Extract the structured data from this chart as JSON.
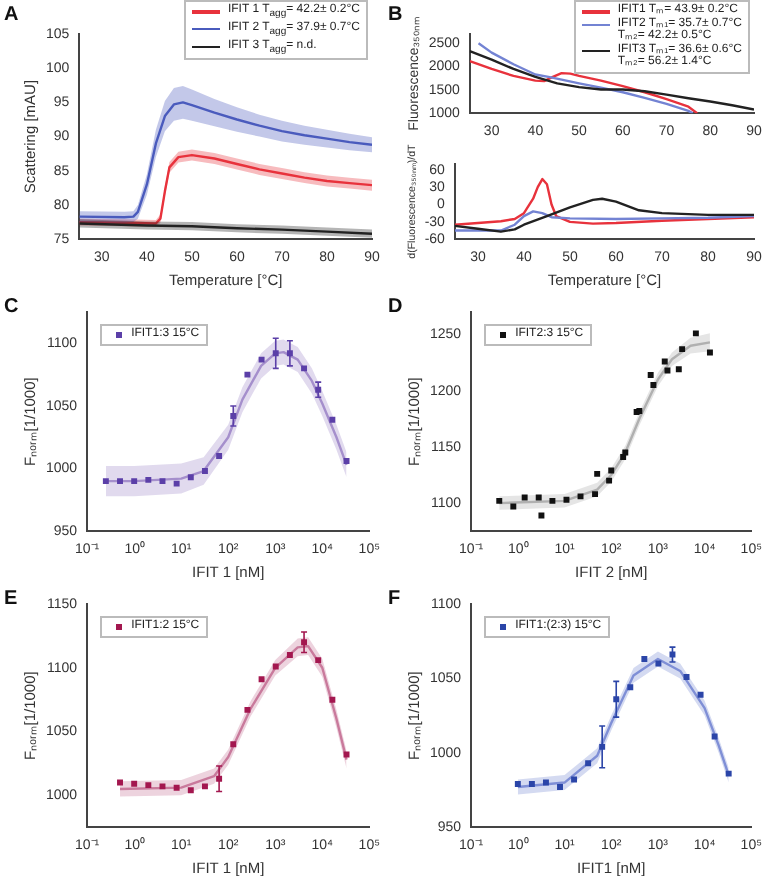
{
  "chart_data": [
    {
      "type": "line",
      "annotations": [
        "A"
      ],
      "xlabel": "Temperature [°C]",
      "ylabel": "Scattering [mAU]",
      "xlim": [
        25,
        90
      ],
      "xticks": [
        30,
        40,
        50,
        60,
        70,
        80,
        90
      ],
      "ylim": [
        75,
        105
      ],
      "yticks": [
        75,
        80,
        85,
        90,
        95,
        100,
        105
      ],
      "grid": false,
      "legend": "top right",
      "series": [
        {
          "name": "IFIT 1  T$_{agg}$= 42.2± 0.2°C",
          "color": "#e8323c",
          "x": [
            25,
            35,
            42,
            43,
            44,
            45,
            47,
            50,
            55,
            60,
            65,
            70,
            75,
            80,
            85,
            90
          ],
          "values": [
            77.5,
            77.4,
            77.3,
            78,
            82,
            85.5,
            87,
            87.3,
            86.8,
            86,
            85.2,
            84.6,
            84,
            83.5,
            83.2,
            82.9
          ],
          "lower": [
            77,
            76.9,
            76.8,
            77.4,
            81.3,
            84.7,
            86.2,
            86.5,
            86,
            85.2,
            84.4,
            83.8,
            83.2,
            82.7,
            82.4,
            82.1
          ],
          "upper": [
            78,
            77.9,
            77.8,
            78.6,
            82.7,
            86.3,
            87.8,
            88.1,
            87.6,
            86.8,
            86,
            85.4,
            84.8,
            84.3,
            84,
            83.7
          ]
        },
        {
          "name": "IFIT 2  T$_{agg}$= 37.9± 0.7°C",
          "color": "#4a5bbd",
          "x": [
            25,
            35,
            37,
            38,
            40,
            42,
            44,
            46,
            48,
            50,
            55,
            60,
            65,
            70,
            75,
            80,
            85,
            90
          ],
          "values": [
            78.3,
            78.2,
            78.3,
            79,
            83,
            89,
            93,
            94.7,
            95,
            94.6,
            93.5,
            92.5,
            91.6,
            90.8,
            90.2,
            89.7,
            89.2,
            88.8
          ],
          "lower": [
            77.5,
            77.4,
            77.5,
            78,
            81.5,
            87,
            90.8,
            92.3,
            92.6,
            92.3,
            91.5,
            90.7,
            90,
            89.3,
            88.8,
            88.4,
            88,
            87.7
          ],
          "upper": [
            79.1,
            79,
            79.1,
            80,
            84.5,
            91,
            95.2,
            97.1,
            97.4,
            96.9,
            95.5,
            94.3,
            93.2,
            92.3,
            91.6,
            91,
            90.4,
            89.9
          ]
        },
        {
          "name": "IFIT 3  T$_{agg}$= n.d.",
          "color": "#222222",
          "x": [
            25,
            40,
            50,
            60,
            70,
            80,
            90
          ],
          "values": [
            77.3,
            77,
            76.9,
            76.6,
            76.4,
            76.1,
            75.8
          ],
          "lower": [
            76.7,
            76.4,
            76.3,
            76,
            75.8,
            75.5,
            75.2
          ],
          "upper": [
            77.9,
            77.6,
            77.5,
            77.2,
            77,
            76.7,
            76.4
          ]
        }
      ]
    },
    {
      "type": "line",
      "annotations": [
        "B"
      ],
      "ylabel": "Fluorescence₃₅₀ₙₘ",
      "xlim": [
        25,
        90
      ],
      "xticks": [
        30,
        40,
        50,
        60,
        70,
        80,
        90
      ],
      "ylim": [
        1000,
        2700
      ],
      "yticks": [
        1000,
        1500,
        2000,
        2500
      ],
      "grid": false,
      "legend": "top right",
      "series": [
        {
          "name": "IFIT1  Tₘ= 43.9± 0.2°C",
          "color": "#e8323c",
          "x": [
            25,
            30,
            35,
            40,
            42,
            44,
            46,
            48,
            50,
            55,
            60,
            65,
            70,
            75,
            77
          ],
          "values": [
            2120,
            1950,
            1800,
            1700,
            1690,
            1780,
            1860,
            1850,
            1800,
            1700,
            1580,
            1450,
            1300,
            1140,
            1000
          ]
        },
        {
          "name": "IFIT2  Tₘ₁= 35.7± 0.7°C\nTₘ₂= 42.2± 0.5°C",
          "color": "#7383d3",
          "x": [
            27,
            30,
            35,
            40,
            43,
            46,
            50,
            55,
            60,
            65,
            70,
            75,
            76
          ],
          "values": [
            2500,
            2300,
            2050,
            1830,
            1780,
            1720,
            1640,
            1550,
            1450,
            1330,
            1200,
            1050,
            1000
          ]
        },
        {
          "name": "IFIT3  Tₘ₁= 36.6± 0.6°C\nTₘ₂= 56.2± 1.4°C",
          "color": "#222222",
          "x": [
            25,
            30,
            35,
            40,
            45,
            50,
            55,
            60,
            65,
            70,
            75,
            80,
            85,
            90
          ],
          "values": [
            2330,
            2150,
            1950,
            1780,
            1640,
            1560,
            1510,
            1510,
            1470,
            1400,
            1320,
            1250,
            1170,
            1080
          ]
        }
      ]
    },
    {
      "type": "line",
      "xlabel": "Temperature [°C]",
      "ylabel": "d(Fluorescence₃₅₀ₙₘ)/dT",
      "xlim": [
        25,
        90
      ],
      "xticks": [
        30,
        40,
        50,
        60,
        70,
        80,
        90
      ],
      "ylim": [
        -60,
        70
      ],
      "yticks": [
        -60,
        -30,
        0,
        30,
        60
      ],
      "grid": false,
      "series": [
        {
          "color": "#e8323c",
          "x": [
            25,
            30,
            35,
            38,
            40,
            42,
            43,
            44,
            45,
            46,
            47,
            50,
            55,
            60,
            70,
            80,
            90
          ],
          "values": [
            -35,
            -32,
            -29,
            -25,
            -15,
            10,
            30,
            44,
            35,
            0,
            -20,
            -30,
            -33,
            -32,
            -28,
            -25,
            -22
          ]
        },
        {
          "color": "#7383d3",
          "x": [
            25,
            30,
            35,
            38,
            40,
            42,
            44,
            46,
            50,
            60,
            70,
            80,
            90
          ],
          "values": [
            -45,
            -45,
            -45,
            -35,
            -20,
            -12,
            -15,
            -22,
            -24,
            -25,
            -24,
            -23,
            -20
          ]
        },
        {
          "color": "#222222",
          "x": [
            25,
            30,
            35,
            38,
            40,
            45,
            50,
            55,
            57,
            60,
            65,
            70,
            80,
            90
          ],
          "values": [
            -37,
            -42,
            -47,
            -43,
            -35,
            -20,
            -5,
            8,
            10,
            5,
            -10,
            -15,
            -18,
            -18
          ]
        }
      ]
    },
    {
      "type": "scatter",
      "annotations": [
        "C"
      ],
      "xlabel": "IFIT 1 [nM]",
      "ylabel": "Fₙₒᵣₘ[1/1000]",
      "log": "x",
      "xlim": [
        0.1,
        100000
      ],
      "xticks": [
        {
          "value": 0.1,
          "label": "10⁻¹"
        },
        {
          "value": 1,
          "label": "10⁰"
        },
        {
          "value": 10,
          "label": "10¹"
        },
        {
          "value": 100,
          "label": "10²"
        },
        {
          "value": 1000,
          "label": "10³"
        },
        {
          "value": 10000,
          "label": "10⁴"
        },
        {
          "value": 100000,
          "label": "10⁵"
        }
      ],
      "ylim": [
        950,
        1125
      ],
      "yticks": [
        950,
        1000,
        1050,
        1100
      ],
      "grid": false,
      "legend": "top left",
      "series": [
        {
          "type": "line",
          "marker": "none",
          "color": "#a58fcc",
          "x": [
            0.25,
            1,
            10,
            30,
            100,
            200,
            500,
            1000,
            1500,
            3000,
            6000,
            10000,
            20000,
            32768
          ],
          "values": [
            990,
            990,
            992,
            998,
            1025,
            1055,
            1082,
            1092,
            1093,
            1087,
            1070,
            1052,
            1025,
            1003
          ],
          "lower": [
            978,
            978,
            980,
            987,
            1015,
            1045,
            1072,
            1082,
            1083,
            1077,
            1060,
            1042,
            1015,
            993
          ],
          "upper": [
            1002,
            1002,
            1004,
            1009,
            1035,
            1065,
            1092,
            1102,
            1103,
            1097,
            1080,
            1062,
            1035,
            1013
          ]
        },
        {
          "type": "scatter",
          "marker": "square",
          "name": "IFIT1:3 15°C",
          "color": "#5b3fa8",
          "x": [
            0.25,
            0.5,
            1,
            2,
            4,
            8,
            16,
            32,
            64,
            128,
            256,
            512,
            1024,
            2048,
            4096,
            8192,
            16384,
            32768
          ],
          "values": [
            990,
            990,
            990,
            991,
            990,
            988,
            993,
            998,
            1010,
            1042,
            1075,
            1087,
            1092,
            1092,
            1080,
            1063,
            1039,
            1006
          ],
          "errors": [
            null,
            null,
            null,
            null,
            null,
            null,
            null,
            null,
            null,
            8,
            null,
            null,
            12,
            10,
            null,
            6,
            null,
            null
          ]
        }
      ]
    },
    {
      "type": "scatter",
      "annotations": [
        "D"
      ],
      "xlabel": "IFIT 2 [nM]",
      "ylabel": "Fₙₒᵣₘ[1/1000]",
      "log": "x",
      "xlim": [
        0.1,
        100000
      ],
      "xticks": [
        {
          "value": 0.1,
          "label": "10⁻¹"
        },
        {
          "value": 1,
          "label": "10⁰"
        },
        {
          "value": 10,
          "label": "10¹"
        },
        {
          "value": 100,
          "label": "10²"
        },
        {
          "value": 1000,
          "label": "10³"
        },
        {
          "value": 10000,
          "label": "10⁴"
        },
        {
          "value": 100000,
          "label": "10⁵"
        }
      ],
      "ylim": [
        1075,
        1270
      ],
      "yticks": [
        1100,
        1150,
        1200,
        1250
      ],
      "grid": false,
      "legend": "top left",
      "series": [
        {
          "type": "line",
          "marker": "none",
          "color": "#b0b0b0",
          "x": [
            0.4,
            10,
            50,
            100,
            200,
            400,
            1000,
            2000,
            5000,
            13000
          ],
          "values": [
            1100,
            1102,
            1112,
            1125,
            1145,
            1175,
            1210,
            1228,
            1240,
            1243
          ],
          "lower": [
            1094,
            1096,
            1106,
            1119,
            1139,
            1169,
            1204,
            1222,
            1233,
            1235
          ],
          "upper": [
            1106,
            1108,
            1118,
            1131,
            1151,
            1181,
            1216,
            1234,
            1247,
            1251
          ]
        },
        {
          "type": "scatter",
          "marker": "square",
          "name": "IFIT2:3 15°C",
          "color": "#111111",
          "x": [
            0.4,
            0.8,
            1.4,
            2.8,
            3.2,
            5.5,
            11,
            22,
            45,
            50,
            90,
            100,
            180,
            200,
            350,
            400,
            700,
            800,
            1400,
            1600,
            2800,
            3300,
            6500,
            13000
          ],
          "values": [
            1102,
            1097,
            1105,
            1105,
            1089,
            1102,
            1103,
            1106,
            1108,
            1126,
            1120,
            1129,
            1141,
            1145,
            1181,
            1182,
            1214,
            1205,
            1226,
            1218,
            1219,
            1237,
            1251,
            1234
          ]
        }
      ]
    },
    {
      "type": "scatter",
      "annotations": [
        "E"
      ],
      "xlabel": "IFIT 1 [nM]",
      "ylabel": "Fₙₒᵣₘ[1/1000]",
      "log": "x",
      "xlim": [
        0.1,
        100000
      ],
      "xticks": [
        {
          "value": 0.1,
          "label": "10⁻¹"
        },
        {
          "value": 1,
          "label": "10⁰"
        },
        {
          "value": 10,
          "label": "10¹"
        },
        {
          "value": 100,
          "label": "10²"
        },
        {
          "value": 1000,
          "label": "10³"
        },
        {
          "value": 10000,
          "label": "10⁴"
        },
        {
          "value": 100000,
          "label": "10⁵"
        }
      ],
      "ylim": [
        975,
        1150
      ],
      "yticks": [
        1000,
        1050,
        1100,
        1150
      ],
      "grid": false,
      "legend": "top left",
      "series": [
        {
          "type": "line",
          "marker": "none",
          "color": "#c97a9c",
          "x": [
            0.5,
            10,
            50,
            100,
            300,
            1000,
            3000,
            5000,
            10000,
            20000,
            32768
          ],
          "values": [
            1005,
            1006,
            1015,
            1030,
            1068,
            1100,
            1116,
            1117,
            1100,
            1060,
            1028
          ],
          "lower": [
            999,
            1000,
            1009,
            1024,
            1062,
            1094,
            1109,
            1110,
            1093,
            1053,
            1021
          ],
          "upper": [
            1011,
            1012,
            1021,
            1036,
            1074,
            1106,
            1123,
            1124,
            1107,
            1067,
            1035
          ]
        },
        {
          "type": "scatter",
          "marker": "square",
          "name": "IFIT1:2 15°C",
          "color": "#a3174f",
          "x": [
            0.5,
            1,
            2,
            4,
            8,
            16,
            32,
            64,
            128,
            256,
            512,
            1024,
            2048,
            4096,
            8192,
            16384,
            32768
          ],
          "values": [
            1010,
            1009,
            1008,
            1007,
            1006,
            1004,
            1007,
            1013,
            1040,
            1067,
            1091,
            1101,
            1110,
            1120,
            1106,
            1075,
            1032
          ],
          "errors": [
            null,
            null,
            null,
            null,
            null,
            null,
            null,
            10,
            null,
            null,
            null,
            null,
            null,
            8,
            null,
            null,
            null
          ]
        }
      ]
    },
    {
      "type": "scatter",
      "annotations": [
        "F"
      ],
      "xlabel": "IFIT1 [nM]",
      "ylabel": "Fₙₒᵣₘ[1/1000]",
      "log": "x",
      "xlim": [
        0.1,
        100000
      ],
      "xticks": [
        {
          "value": 0.1,
          "label": "10⁻¹"
        },
        {
          "value": 1,
          "label": "10⁰"
        },
        {
          "value": 10,
          "label": "10¹"
        },
        {
          "value": 100,
          "label": "10²"
        },
        {
          "value": 1000,
          "label": "10³"
        },
        {
          "value": 10000,
          "label": "10⁴"
        },
        {
          "value": 100000,
          "label": "10⁵"
        }
      ],
      "ylim": [
        950,
        1100
      ],
      "yticks": [
        950,
        1000,
        1050,
        1100
      ],
      "grid": false,
      "legend": "top left",
      "series": [
        {
          "type": "line",
          "marker": "none",
          "color": "#7f8fd6",
          "x": [
            1,
            10,
            50,
            100,
            300,
            1000,
            3000,
            10000,
            20000,
            32768
          ],
          "values": [
            977,
            980,
            998,
            1020,
            1052,
            1063,
            1055,
            1030,
            1005,
            985
          ],
          "lower": [
            972,
            975,
            993,
            1015,
            1047,
            1058,
            1050,
            1025,
            1000,
            980
          ],
          "upper": [
            982,
            985,
            1003,
            1025,
            1057,
            1068,
            1060,
            1035,
            1010,
            990
          ]
        },
        {
          "type": "scatter",
          "marker": "square",
          "name": "IFIT1:(2:3) 15°C",
          "color": "#2b45a8",
          "x": [
            1,
            2,
            4,
            8,
            16,
            32,
            64,
            128,
            256,
            512,
            1024,
            2048,
            4096,
            8192,
            16384,
            32768
          ],
          "values": [
            979,
            979,
            980,
            977,
            982,
            993,
            1004,
            1036,
            1044,
            1063,
            1060,
            1066,
            1051,
            1039,
            1011,
            986
          ],
          "errors": [
            null,
            null,
            null,
            null,
            null,
            null,
            14,
            12,
            null,
            null,
            null,
            5,
            null,
            null,
            null,
            null
          ]
        }
      ]
    }
  ]
}
